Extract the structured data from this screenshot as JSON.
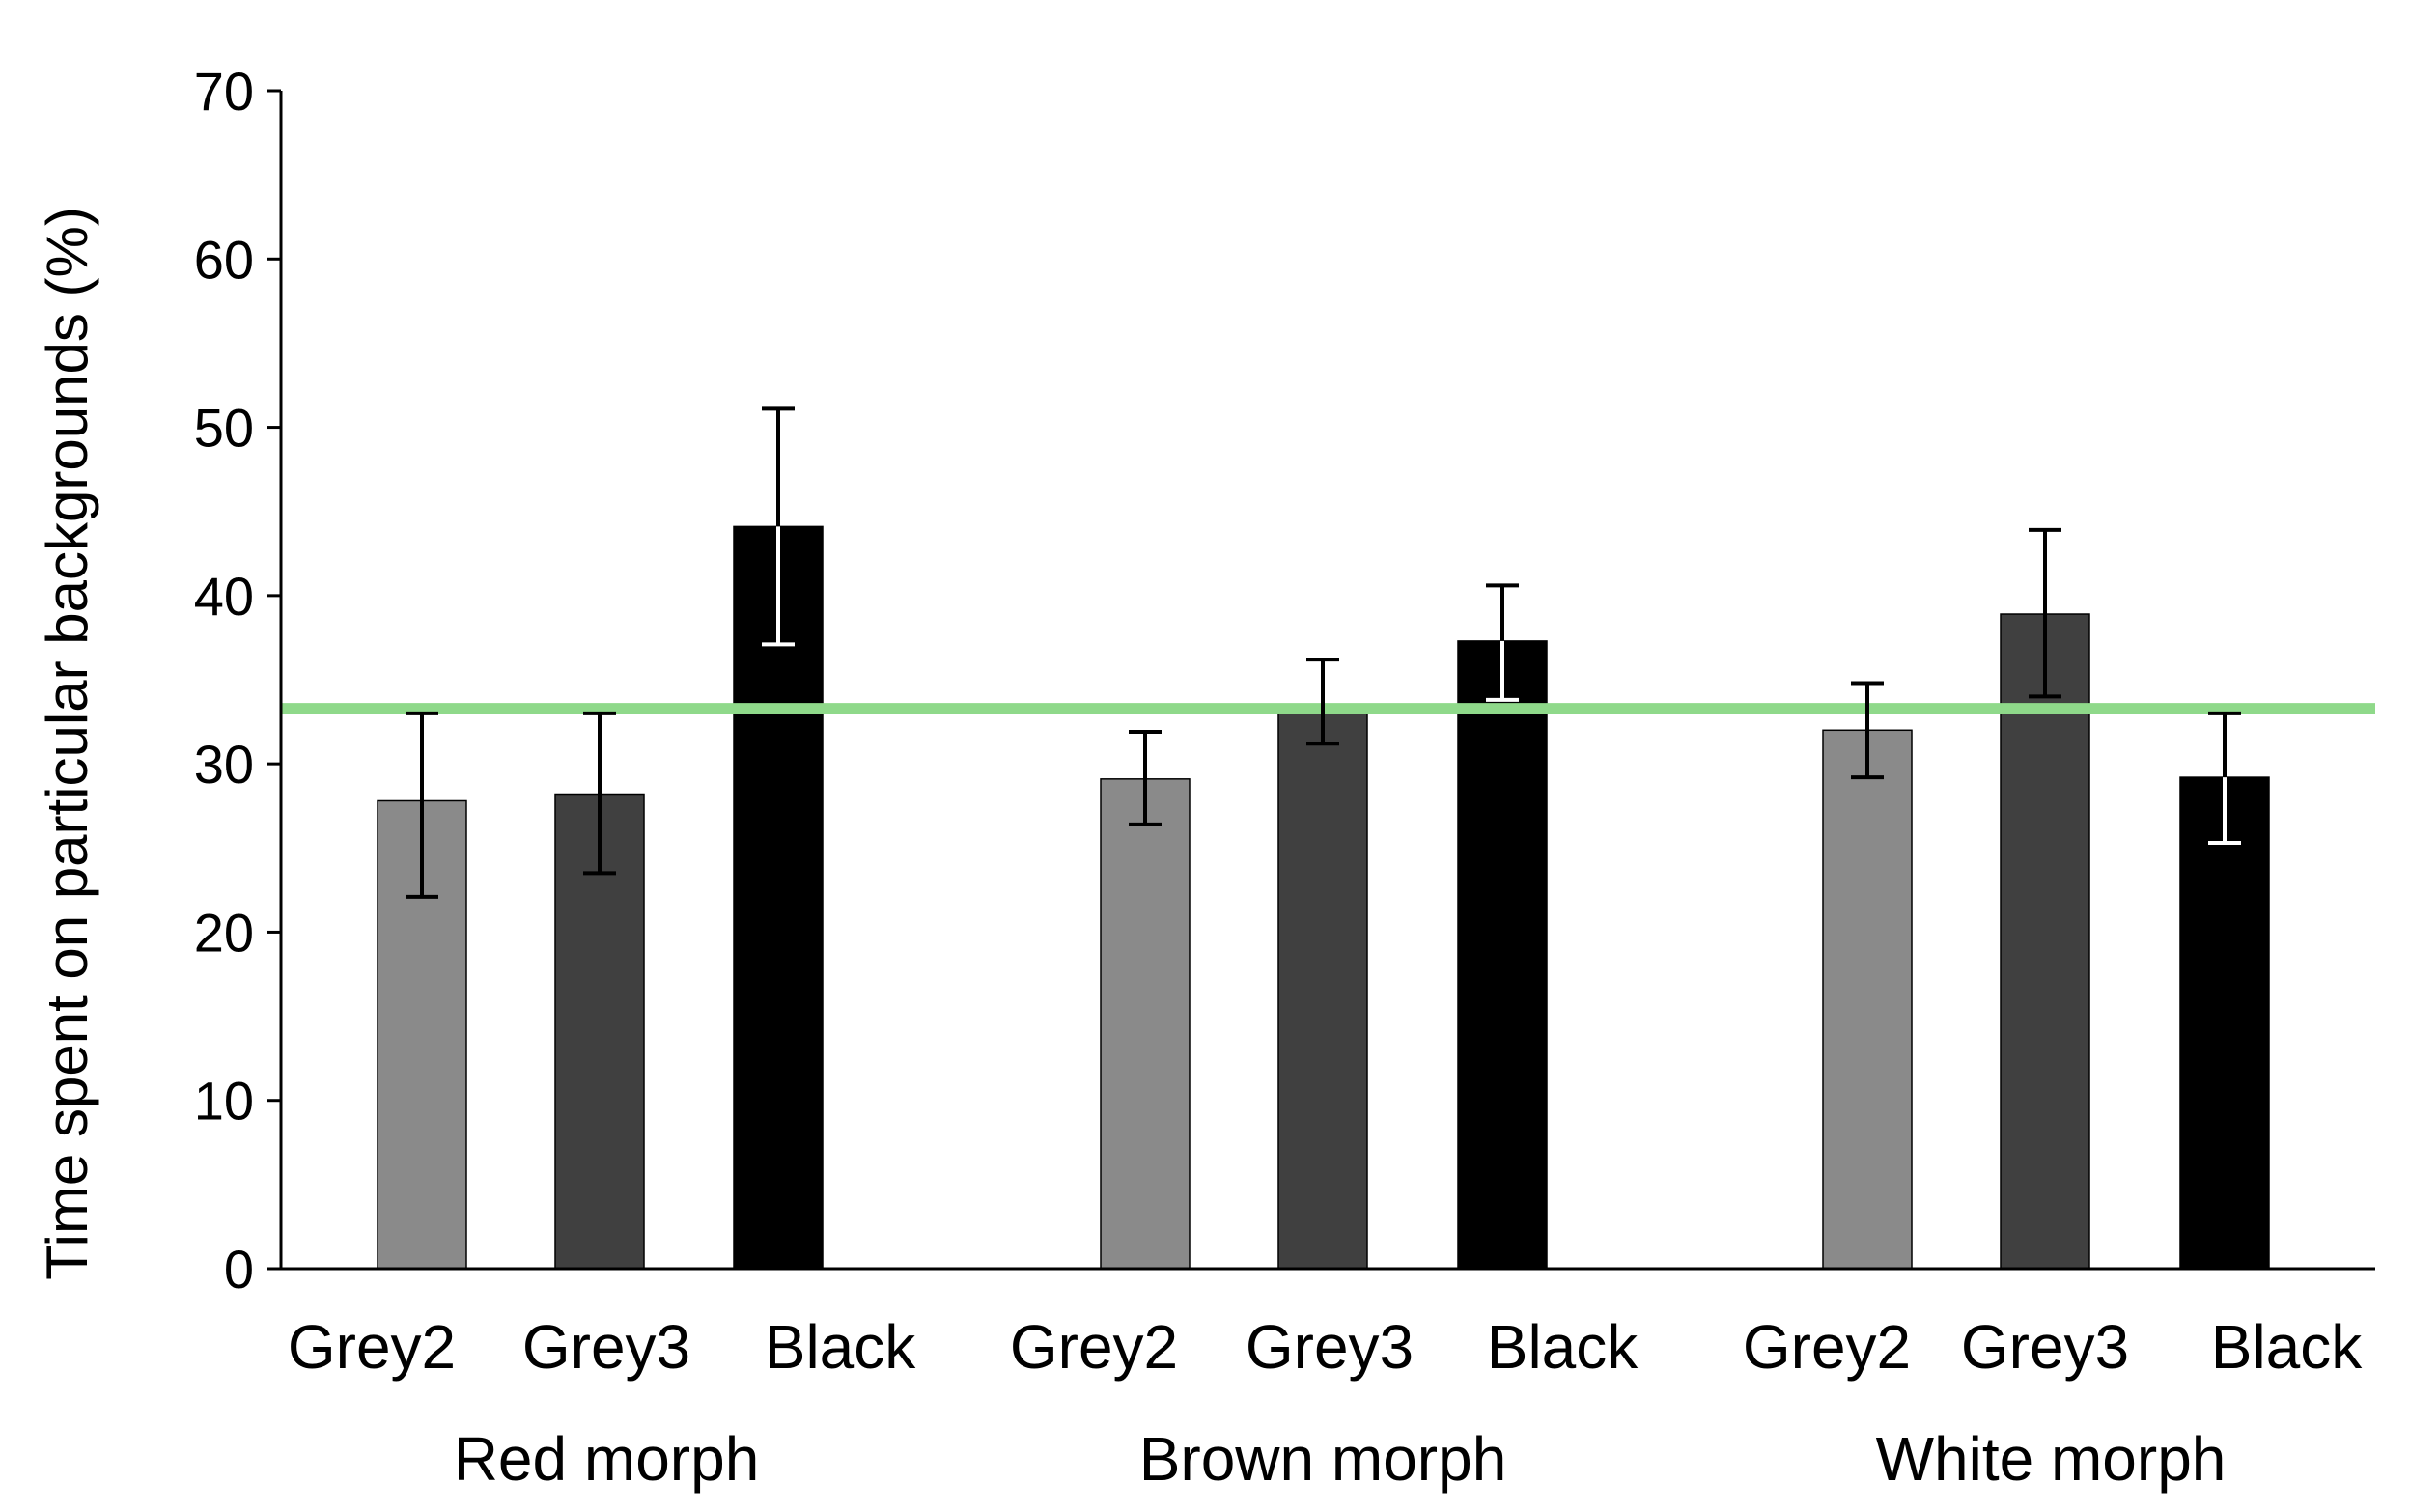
{
  "chart_data": {
    "type": "bar",
    "ylabel": "Time spent on particular backgrounds (%)",
    "ylim": [
      0,
      70
    ],
    "yticks": [
      0,
      10,
      20,
      30,
      40,
      50,
      60,
      70
    ],
    "reference_line": {
      "value": 33.3,
      "color": "#8fd98a"
    },
    "groups": [
      {
        "name": "Red morph",
        "bars": [
          {
            "category": "Grey2",
            "value": 27.8,
            "err_low": 22.1,
            "err_high": 33.0,
            "color": "#8a8a8a"
          },
          {
            "category": "Grey3",
            "value": 28.2,
            "err_low": 23.5,
            "err_high": 33.0,
            "color": "#404040"
          },
          {
            "category": "Black",
            "value": 44.1,
            "err_low": 37.1,
            "err_high": 51.1,
            "color": "#000000"
          }
        ]
      },
      {
        "name": "Brown morph",
        "bars": [
          {
            "category": "Grey2",
            "value": 29.1,
            "err_low": 26.4,
            "err_high": 31.9,
            "color": "#8a8a8a"
          },
          {
            "category": "Grey3",
            "value": 33.4,
            "err_low": 31.2,
            "err_high": 36.2,
            "color": "#404040"
          },
          {
            "category": "Black",
            "value": 37.3,
            "err_low": 33.8,
            "err_high": 40.6,
            "color": "#000000"
          }
        ]
      },
      {
        "name": "White morph",
        "bars": [
          {
            "category": "Grey2",
            "value": 32.0,
            "err_low": 29.2,
            "err_high": 34.8,
            "color": "#8a8a8a"
          },
          {
            "category": "Grey3",
            "value": 38.9,
            "err_low": 34.0,
            "err_high": 43.9,
            "color": "#404040"
          },
          {
            "category": "Black",
            "value": 29.2,
            "err_low": 25.3,
            "err_high": 33.0,
            "color": "#000000"
          }
        ]
      }
    ]
  }
}
